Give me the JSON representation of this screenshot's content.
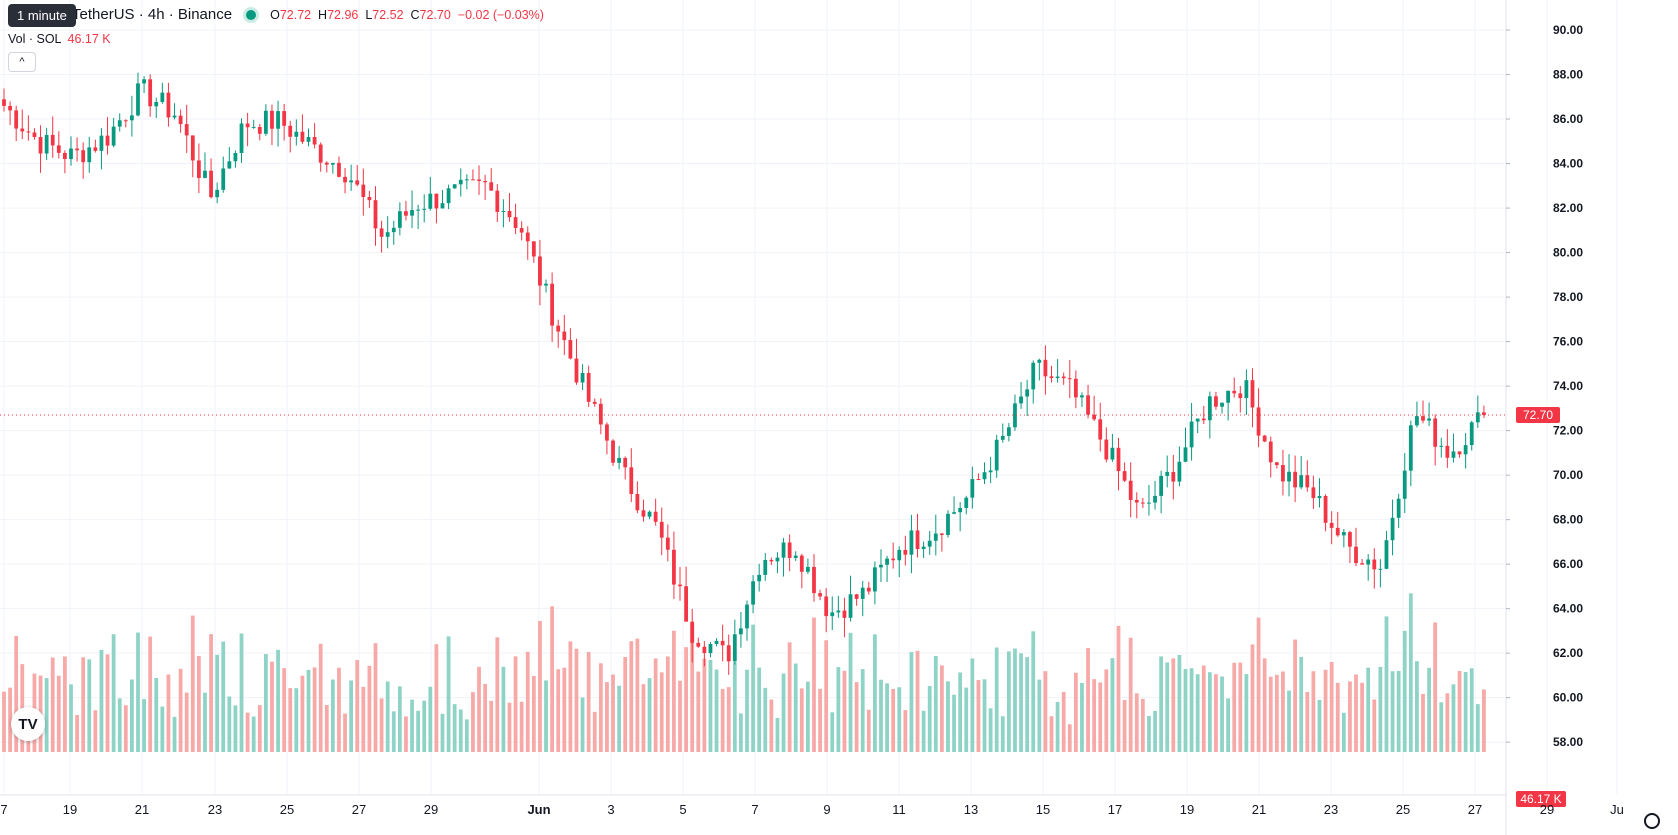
{
  "header": {
    "symbol": "TetherUS · 4h · Binance",
    "tooltip": "1 minute",
    "open_label": "O",
    "open": "72.72",
    "high_label": "H",
    "high": "72.96",
    "low_label": "L",
    "low": "72.52",
    "close_label": "C",
    "close": "72.70",
    "change": "−0.02 (−0.03%)",
    "collapse_icon": "chevron-up-icon"
  },
  "volume_legend": {
    "label": "Vol · SOL",
    "value": "46.17 K"
  },
  "price_badge": "72.70",
  "volume_badge": "46.17 K",
  "logo_text": "TV",
  "colors": {
    "up": "#089981",
    "down": "#f23645",
    "up_vol": "#8fd3c7",
    "down_vol": "#f7a9a7",
    "grid": "#f0f3fa"
  },
  "chart_data": {
    "type": "candlestick",
    "y_axis": {
      "min": 57.2,
      "max": 90.9,
      "ticks": [
        "90.00",
        "88.00",
        "86.00",
        "84.00",
        "82.00",
        "80.00",
        "78.00",
        "76.00",
        "74.00",
        "72.00",
        "70.00",
        "68.00",
        "66.00",
        "64.00",
        "62.00",
        "60.00",
        "58.00"
      ]
    },
    "x_axis": {
      "ticks": [
        "7",
        "19",
        "21",
        "23",
        "25",
        "27",
        "29",
        "Jun",
        "3",
        "5",
        "7",
        "9",
        "11",
        "13",
        "15",
        "17",
        "19",
        "21",
        "23",
        "25",
        "27",
        "29",
        "Ju"
      ]
    },
    "last_price": 72.7,
    "last_volume": "46.17K",
    "anchors": [
      [
        "17",
        86.6
      ],
      [
        "18",
        85.0
      ],
      [
        "19",
        84.3
      ],
      [
        "20",
        85.2
      ],
      [
        "21",
        87.3
      ],
      [
        "22",
        86.2
      ],
      [
        "23",
        82.5
      ],
      [
        "24",
        85.8
      ],
      [
        "25",
        85.9
      ],
      [
        "26",
        84.7
      ],
      [
        "27",
        83.6
      ],
      [
        "28",
        80.7
      ],
      [
        "29",
        82.2
      ],
      [
        "30",
        82.6
      ],
      [
        "31",
        83.0
      ],
      [
        "Jun",
        81.2
      ],
      [
        "2",
        77.0
      ],
      [
        "3",
        73.3
      ],
      [
        "4",
        70.0
      ],
      [
        "5",
        67.5
      ],
      [
        "6",
        63.0
      ],
      [
        "7",
        61.8
      ],
      [
        "8",
        66.3
      ],
      [
        "9",
        66.8
      ],
      [
        "10",
        63.8
      ],
      [
        "11",
        64.7
      ],
      [
        "12",
        66.8
      ],
      [
        "13",
        67.5
      ],
      [
        "14",
        69.0
      ],
      [
        "15",
        71.5
      ],
      [
        "16",
        74.8
      ],
      [
        "17",
        73.8
      ],
      [
        "18",
        71.3
      ],
      [
        "19",
        68.2
      ],
      [
        "20",
        70.3
      ],
      [
        "21",
        73.3
      ],
      [
        "22",
        74.1
      ],
      [
        "23",
        70.2
      ],
      [
        "24",
        69.2
      ],
      [
        "25",
        66.8
      ],
      [
        "26",
        65.9
      ],
      [
        "27",
        72.8
      ],
      [
        "28",
        71.0
      ],
      [
        "29",
        72.7
      ]
    ],
    "volume_max": 58.0
  }
}
